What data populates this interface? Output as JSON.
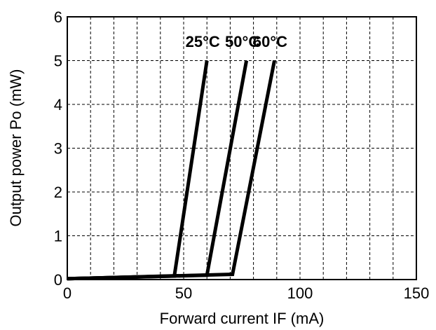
{
  "chart_data": {
    "type": "line",
    "xlabel": "Forward current  IF (mA)",
    "ylabel": "Output power  Po (mW)",
    "xlim": [
      0,
      150
    ],
    "ylim": [
      0,
      6
    ],
    "x_ticks": [
      "0",
      "50",
      "100",
      "150"
    ],
    "y_ticks": [
      "0",
      "1",
      "2",
      "3",
      "4",
      "5",
      "6"
    ],
    "grid": true,
    "series": [
      {
        "name": "25°C",
        "x": [
          0,
          46,
          60
        ],
        "y": [
          0.02,
          0.08,
          5
        ]
      },
      {
        "name": "50°C",
        "x": [
          0,
          60,
          77
        ],
        "y": [
          0.02,
          0.1,
          5
        ]
      },
      {
        "name": "60°C",
        "x": [
          0,
          71,
          89
        ],
        "y": [
          0.02,
          0.12,
          5
        ]
      }
    ]
  }
}
